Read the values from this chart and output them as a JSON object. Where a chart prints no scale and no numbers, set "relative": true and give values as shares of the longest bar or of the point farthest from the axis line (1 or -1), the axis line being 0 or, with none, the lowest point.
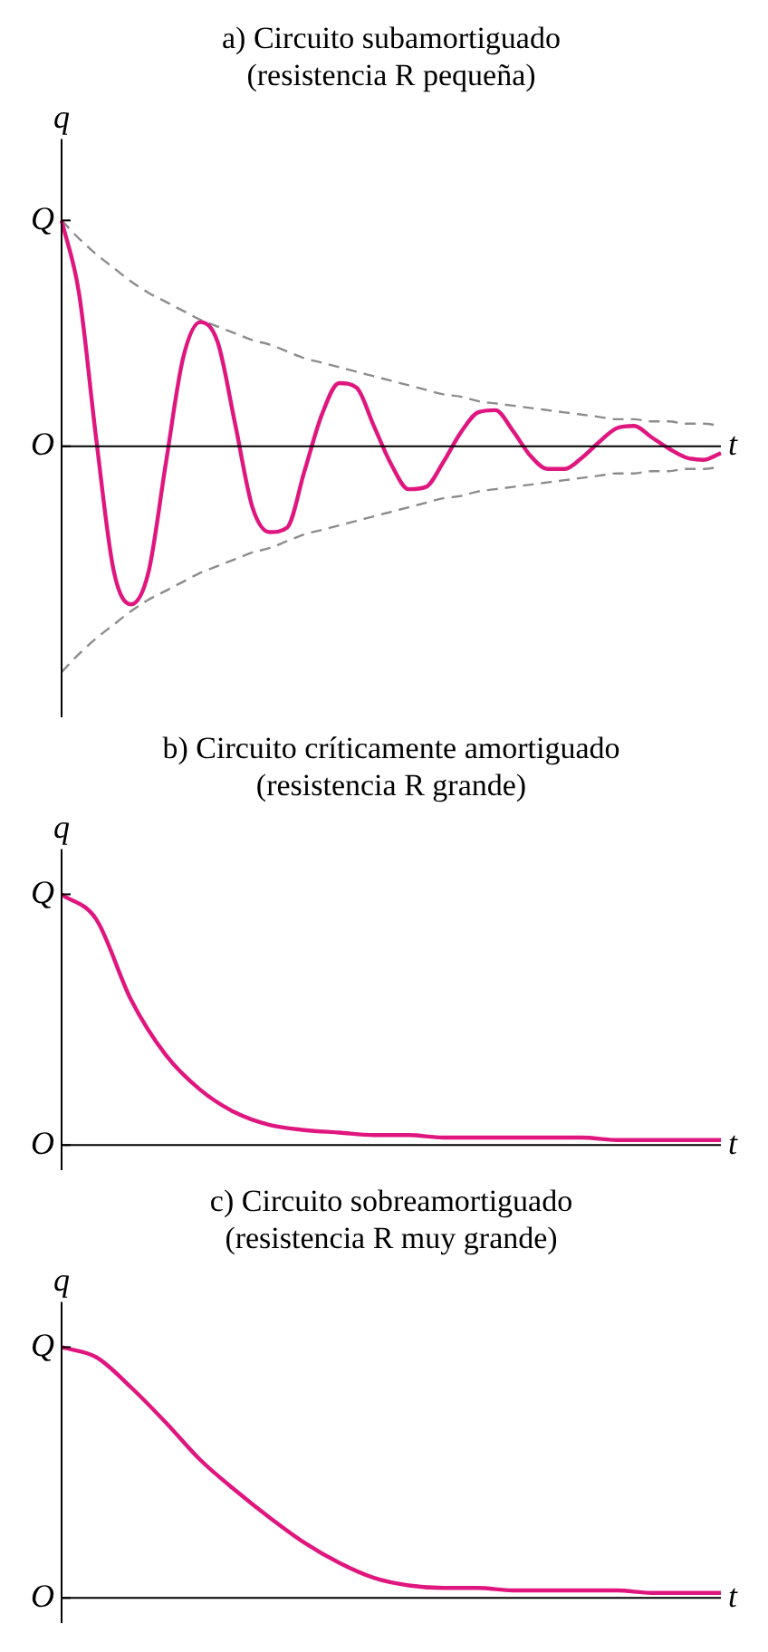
{
  "chart_data": [
    {
      "type": "line",
      "title": "a) Circuito subamortiguado",
      "subtitle": "(resistencia R pequeña)",
      "xlabel": "t",
      "ylabel": "q",
      "categories": [
        null,
        null,
        null,
        null,
        null,
        null,
        null,
        null,
        null,
        null,
        null,
        null,
        null,
        null,
        null,
        null,
        null,
        null,
        null,
        null,
        null,
        null,
        null,
        null,
        null,
        null,
        null,
        null,
        null,
        null,
        null,
        null,
        null,
        null,
        null,
        null,
        null,
        null,
        null
      ],
      "relative": true,
      "annotations": [
        "Q",
        "O"
      ],
      "legend": false,
      "marker": "none",
      "series": [
        {
          "color": "#e0167f",
          "line_style": "solid",
          "values": [
            1,
            0.68,
            0.03,
            -0.55,
            -0.7,
            -0.56,
            -0.08,
            0.39,
            0.55,
            0.46,
            0.1,
            -0.27,
            -0.38,
            -0.36,
            -0.11,
            0.14,
            0.28,
            0.26,
            0.09,
            -0.08,
            -0.19,
            -0.18,
            -0.07,
            0.06,
            0.15,
            0.16,
            0.07,
            -0.04,
            -0.1,
            -0.1,
            -0.05,
            0.02,
            0.08,
            0.09,
            0.04,
            -0.01,
            -0.05,
            -0.06,
            -0.03
          ]
        },
        {
          "color": "#8c8c8c",
          "line_style": "dashed",
          "values": [
            1,
            0.92,
            0.85,
            0.79,
            0.73,
            0.68,
            0.64,
            0.6,
            0.56,
            0.53,
            0.5,
            0.47,
            0.45,
            0.42,
            0.39,
            0.37,
            0.35,
            0.33,
            0.31,
            0.29,
            0.27,
            0.25,
            0.23,
            0.22,
            0.2,
            0.19,
            0.18,
            0.17,
            0.16,
            0.15,
            0.14,
            0.13,
            0.12,
            0.12,
            0.11,
            0.11,
            0.1,
            0.1,
            0.09
          ]
        },
        {
          "color": "#8c8c8c",
          "line_style": "dashed",
          "values": [
            -1,
            -0.92,
            -0.85,
            -0.79,
            -0.73,
            -0.68,
            -0.64,
            -0.6,
            -0.56,
            -0.53,
            -0.5,
            -0.47,
            -0.45,
            -0.42,
            -0.39,
            -0.37,
            -0.35,
            -0.33,
            -0.31,
            -0.29,
            -0.27,
            -0.25,
            -0.23,
            -0.22,
            -0.2,
            -0.19,
            -0.18,
            -0.17,
            -0.16,
            -0.15,
            -0.14,
            -0.13,
            -0.12,
            -0.12,
            -0.11,
            -0.11,
            -0.1,
            -0.1,
            -0.09
          ]
        }
      ]
    },
    {
      "type": "line",
      "title": "b) Circuito críticamente amortiguado",
      "subtitle": "(resistencia R grande)",
      "xlabel": "t",
      "ylabel": "q",
      "categories": [
        null,
        null,
        null,
        null,
        null,
        null,
        null,
        null,
        null,
        null,
        null,
        null,
        null,
        null,
        null,
        null,
        null,
        null,
        null,
        null
      ],
      "relative": true,
      "annotations": [
        "Q",
        "O"
      ],
      "legend": false,
      "marker": "none",
      "series": [
        {
          "color": "#e0167f",
          "line_style": "solid",
          "values": [
            1,
            0.9,
            0.58,
            0.36,
            0.22,
            0.13,
            0.08,
            0.06,
            0.05,
            0.04,
            0.04,
            0.03,
            0.03,
            0.03,
            0.03,
            0.03,
            0.02,
            0.02,
            0.02,
            0.02
          ]
        }
      ]
    },
    {
      "type": "line",
      "title": "c) Circuito sobreamortiguado",
      "subtitle": "(resistencia R muy grande)",
      "xlabel": "t",
      "ylabel": "q",
      "categories": [
        null,
        null,
        null,
        null,
        null,
        null,
        null,
        null,
        null,
        null,
        null,
        null,
        null,
        null,
        null,
        null,
        null,
        null,
        null,
        null
      ],
      "relative": true,
      "annotations": [
        "Q",
        "O"
      ],
      "legend": false,
      "marker": "none",
      "series": [
        {
          "color": "#e0167f",
          "line_style": "solid",
          "values": [
            1,
            0.96,
            0.84,
            0.7,
            0.55,
            0.43,
            0.32,
            0.22,
            0.14,
            0.08,
            0.05,
            0.04,
            0.04,
            0.03,
            0.03,
            0.03,
            0.03,
            0.02,
            0.02,
            0.02
          ]
        }
      ]
    }
  ]
}
